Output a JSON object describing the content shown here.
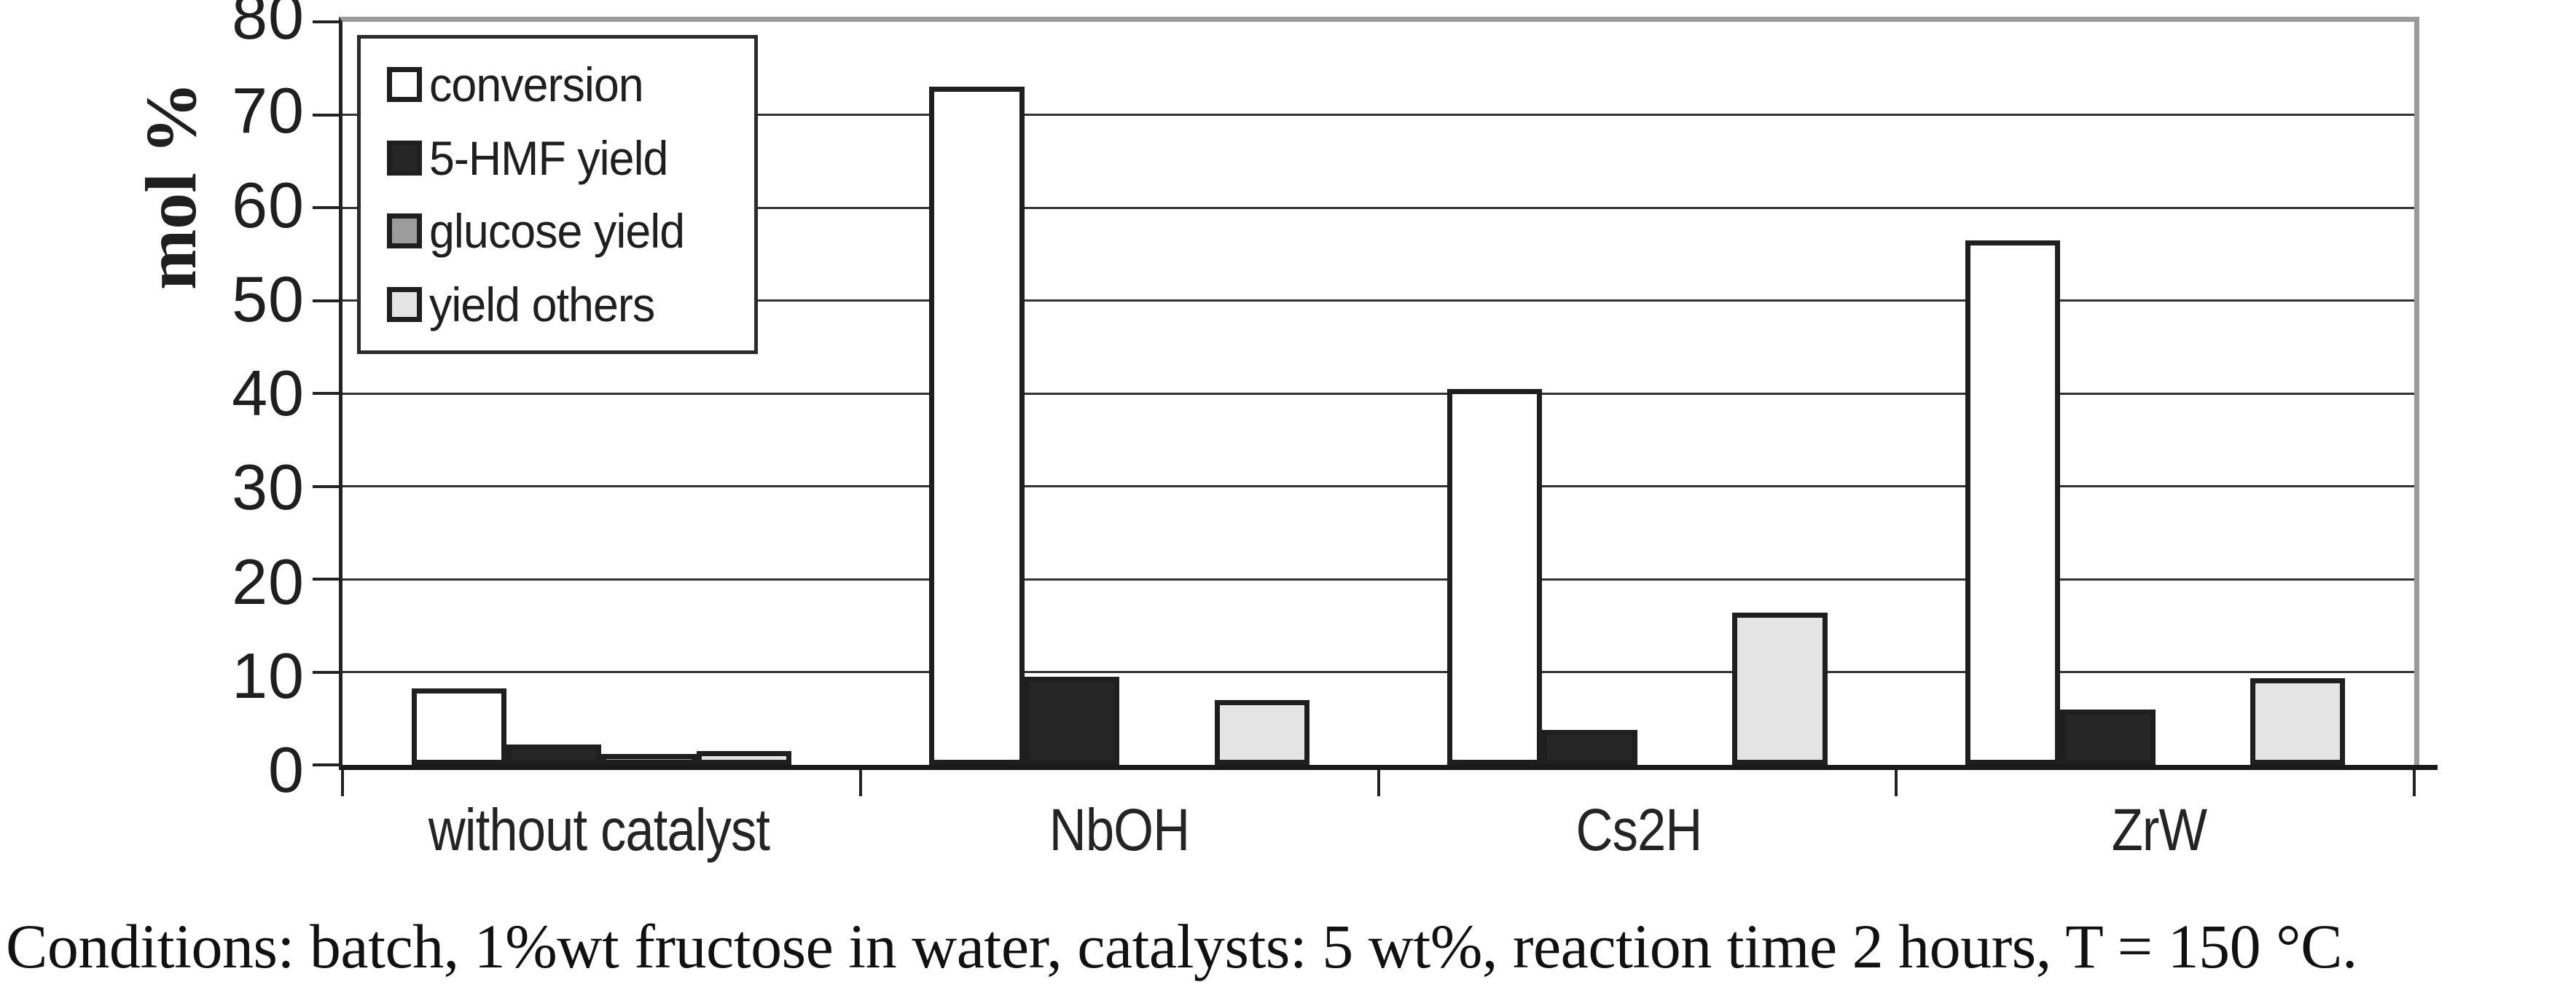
{
  "chart_data": {
    "type": "bar",
    "title": "",
    "ylabel": "mol %",
    "xlabel": "",
    "ylim": [
      0,
      80
    ],
    "yticks": [
      0,
      10,
      20,
      30,
      40,
      50,
      60,
      70,
      80
    ],
    "grid": true,
    "legend_position": "top-left",
    "categories": [
      "without catalyst",
      "NbOH",
      "Cs2H",
      "ZrW"
    ],
    "series": [
      {
        "name": "conversion",
        "color": "#ffffff",
        "values": [
          8.2,
          73,
          40.5,
          56.5
        ]
      },
      {
        "name": "5-HMF yield",
        "color": "#262626",
        "values": [
          2.2,
          9.5,
          3.8,
          6.0
        ]
      },
      {
        "name": "glucose yield",
        "color": "#9c9c9c",
        "values": [
          1.2,
          0,
          0,
          0
        ]
      },
      {
        "name": "yield others",
        "color": "#e4e4e4",
        "values": [
          1.5,
          7,
          16.4,
          9.3
        ]
      }
    ]
  },
  "caption": "Conditions: batch, 1%wt fructose in water, catalysts: 5 wt%, reaction time 2 hours, T = 150 °C."
}
